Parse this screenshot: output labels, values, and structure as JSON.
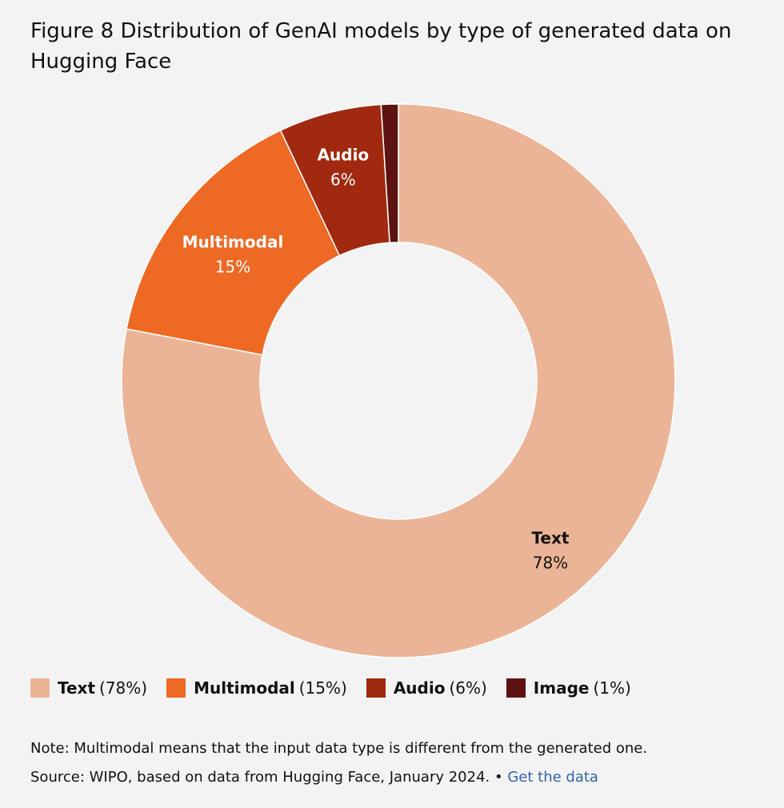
{
  "title": "Figure 8 Distribution of GenAI models by type of generated data on Hugging Face",
  "chart_data": {
    "type": "pie",
    "donut": true,
    "categories": [
      "Text",
      "Multimodal",
      "Audio",
      "Image"
    ],
    "values": [
      78,
      15,
      6,
      1
    ],
    "value_labels": [
      "78%",
      "15%",
      "6%",
      "1%"
    ],
    "colors": [
      "#ecb496",
      "#ed6924",
      "#a1290f",
      "#5c1312"
    ],
    "label_colors": [
      "#111111",
      "#ffffff",
      "#ffffff",
      "#ffffff"
    ],
    "show_inside_label": [
      true,
      true,
      true,
      false
    ],
    "legend": [
      {
        "name": "Text",
        "value": "(78%)"
      },
      {
        "name": "Multimodal",
        "value": "(15%)"
      },
      {
        "name": "Audio",
        "value": "(6%)"
      },
      {
        "name": "Image",
        "value": "(1%)"
      }
    ],
    "legend_placement": "bottom"
  },
  "note": "Note: Multimodal means that the input data type is different from the generated one.",
  "source": {
    "text": "Source: WIPO, based on data from Hugging Face, January 2024. •",
    "link_text": "Get the data"
  }
}
